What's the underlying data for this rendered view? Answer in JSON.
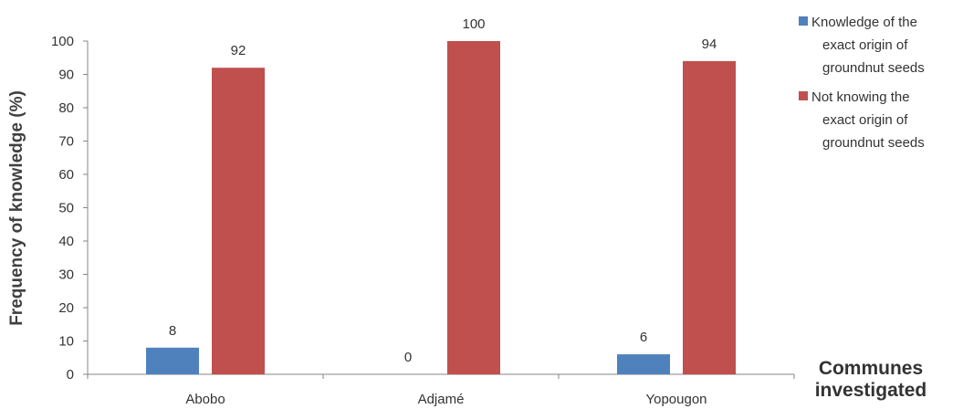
{
  "chart_data": {
    "type": "bar",
    "categories": [
      "Abobo",
      "Adjamé",
      "Yopougon"
    ],
    "series": [
      {
        "name": "Knowledge of the exact origin of groundnut seeds",
        "legend_lines": [
          "Knowledge  of  the",
          "exact origin  of",
          "groundnut  seeds"
        ],
        "color": "#4f81bd",
        "values": [
          8,
          0,
          6
        ],
        "value_labels": [
          "8",
          "0",
          "6"
        ]
      },
      {
        "name": "Not knowing the exact origin of groundnut seeds",
        "legend_lines": [
          "Not knowing  the",
          "exact origin  of",
          "groundnut  seeds"
        ],
        "color": "#c0504d",
        "values": [
          92,
          100,
          94
        ],
        "value_labels": [
          "92",
          "100",
          "94"
        ]
      }
    ],
    "ylabel": "Frequency of knowledge (%)",
    "xlabel_lines": [
      "Communes",
      "investigated"
    ],
    "ylim": [
      0,
      100
    ],
    "yticks": [
      "0",
      "10",
      "20",
      "30",
      "40",
      "50",
      "60",
      "70",
      "80",
      "90",
      "100"
    ],
    "grid": false,
    "legend_position": "top-right"
  }
}
